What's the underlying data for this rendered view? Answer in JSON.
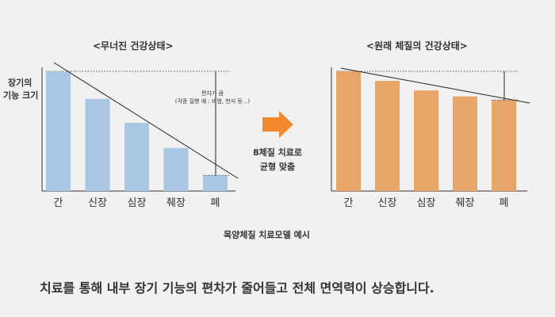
{
  "left_chart": {
    "title": "<무너진 건강상태>",
    "ylabel_line1": "장기의",
    "ylabel_line2": "기능 크기",
    "deviation_note_line1": "편차가 큼",
    "deviation_note_line2": "(각종 질병 예 : 비염, 천식 등...)"
  },
  "right_chart": {
    "title": "<원래 체질의 건강상태>"
  },
  "arrow": {
    "label_line1": "8체질 치료로",
    "label_line2": "균형 맞춤"
  },
  "caption": "목양체질 치료모델 예시",
  "footer": "치료를 통해 내부 장기 기능의 편차가 줄어들고 전체 면역력이 상승합니다.",
  "colors": {
    "background": "#f1f1f1",
    "left_bar": "#a9c6e3",
    "right_bar": "#e8a56a",
    "arrow": "#f08a2c",
    "axis": "#333333"
  },
  "chart_data": [
    {
      "type": "bar",
      "categories": [
        "간",
        "신장",
        "심장",
        "췌장",
        "폐"
      ],
      "values": [
        100,
        77,
        57,
        36,
        13
      ],
      "ylim": [
        0,
        100
      ]
    },
    {
      "type": "bar",
      "categories": [
        "간",
        "신장",
        "심장",
        "췌장",
        "폐"
      ],
      "values": [
        100,
        92,
        84,
        79,
        76
      ],
      "ylim": [
        0,
        100
      ]
    }
  ]
}
